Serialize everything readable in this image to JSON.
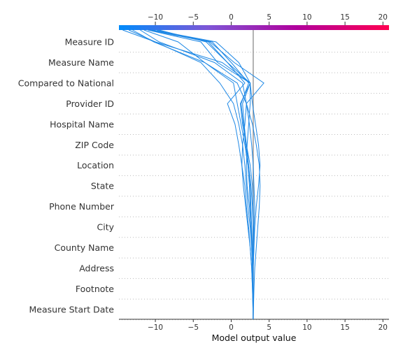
{
  "chart_data": {
    "type": "line",
    "title": "",
    "xlabel": "Model output value",
    "ylabel": "",
    "xlim": [
      -14.8,
      20.8
    ],
    "xticks": [
      -10,
      -5,
      0,
      5,
      10,
      15,
      20
    ],
    "base_value": 2.9,
    "features": [
      "Measure ID",
      "Measure Name",
      "Compared to National",
      "Provider ID",
      "Hospital Name",
      "ZIP Code",
      "Location",
      "State",
      "Phone Number",
      "City",
      "County Name",
      "Address",
      "Footnote",
      "Measure Start Date"
    ],
    "colorbar": {
      "colors": [
        "#008bfb",
        "#7e56d6",
        "#b1009c",
        "#ff0051"
      ]
    },
    "line_color": "#1e88e5",
    "series": [
      {
        "values": [
          -14.3,
          -10.0,
          -4.0,
          -1.5,
          0.3,
          1.0,
          1.5,
          1.8,
          2.0,
          2.2,
          2.5,
          2.7,
          2.8,
          2.9,
          2.9
        ]
      },
      {
        "values": [
          -13.0,
          -10.2,
          -3.5,
          0.3,
          0.8,
          1.3,
          1.8,
          2.2,
          2.4,
          2.5,
          2.6,
          2.7,
          2.8,
          2.9,
          2.9
        ]
      },
      {
        "values": [
          -12.0,
          -9.5,
          -2.2,
          1.5,
          2.0,
          2.4,
          2.7,
          2.9,
          3.0,
          3.1,
          3.0,
          3.0,
          2.9,
          2.9,
          2.9
        ]
      },
      {
        "values": [
          -11.5,
          -7.0,
          -3.5,
          0.8,
          2.0,
          2.8,
          3.3,
          3.7,
          3.8,
          3.7,
          3.5,
          3.3,
          3.1,
          3.0,
          2.9
        ]
      },
      {
        "values": [
          -11.0,
          -4.0,
          -1.8,
          2.5,
          1.5,
          1.7,
          2.0,
          2.3,
          2.5,
          2.6,
          2.7,
          2.8,
          2.9,
          2.9,
          2.9
        ]
      },
      {
        "values": [
          -10.8,
          -3.0,
          -0.5,
          2.5,
          2.5,
          2.3,
          2.1,
          2.0,
          2.1,
          2.4,
          2.6,
          2.8,
          2.9,
          2.9,
          2.9
        ]
      },
      {
        "values": [
          -10.5,
          -2.5,
          0.0,
          2.3,
          1.3,
          1.6,
          1.9,
          2.3,
          2.6,
          2.8,
          2.9,
          2.9,
          2.9,
          2.9,
          2.9
        ]
      },
      {
        "values": [
          -10.3,
          -2.0,
          1.0,
          2.5,
          2.8,
          3.2,
          3.6,
          3.8,
          3.6,
          3.3,
          3.1,
          3.0,
          2.9,
          2.9,
          2.9
        ]
      },
      {
        "values": [
          -9.8,
          -2.8,
          0.4,
          4.3,
          2.0,
          1.8,
          1.5,
          1.4,
          1.6,
          1.9,
          2.2,
          2.5,
          2.7,
          2.8,
          2.9
        ]
      },
      {
        "values": [
          -9.5,
          -3.3,
          -0.5,
          1.8,
          -0.5,
          0.5,
          1.0,
          1.4,
          1.8,
          2.0,
          2.3,
          2.5,
          2.7,
          2.8,
          2.9
        ]
      },
      {
        "values": [
          -13.5,
          -10.0,
          -1.2,
          2.5,
          1.2,
          1.5,
          2.0,
          2.5,
          2.8,
          2.9,
          2.9,
          2.9,
          2.9,
          2.9,
          2.9
        ]
      }
    ]
  }
}
